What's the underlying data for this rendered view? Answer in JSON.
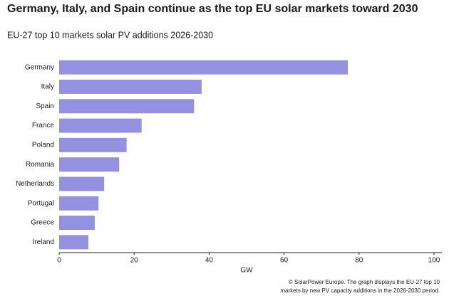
{
  "chart_data": {
    "type": "hbar",
    "title": "Germany, Italy, and Spain continue as the top EU solar markets toward 2030",
    "subtitle": "EU-27 top 10 markets solar PV additions 2026-2030",
    "x_label": "GW",
    "categories": [
      "Germany",
      "Italy",
      "Spain",
      "France",
      "Poland",
      "Romania",
      "Netherlands",
      "Portugal",
      "Greece",
      "Ireland"
    ],
    "values": [
      77,
      38,
      36,
      22,
      18,
      16,
      12,
      10.5,
      9.5,
      7.8
    ],
    "color": "#9591e1",
    "xlim": [
      0,
      100
    ],
    "xticks": [
      0,
      20,
      40,
      60,
      80,
      100
    ],
    "caption": [
      "© SolarPower Europe. The graph displays the EU-27 top 10",
      "markets by new PV capacity additions in the 2026-2030 period."
    ]
  }
}
